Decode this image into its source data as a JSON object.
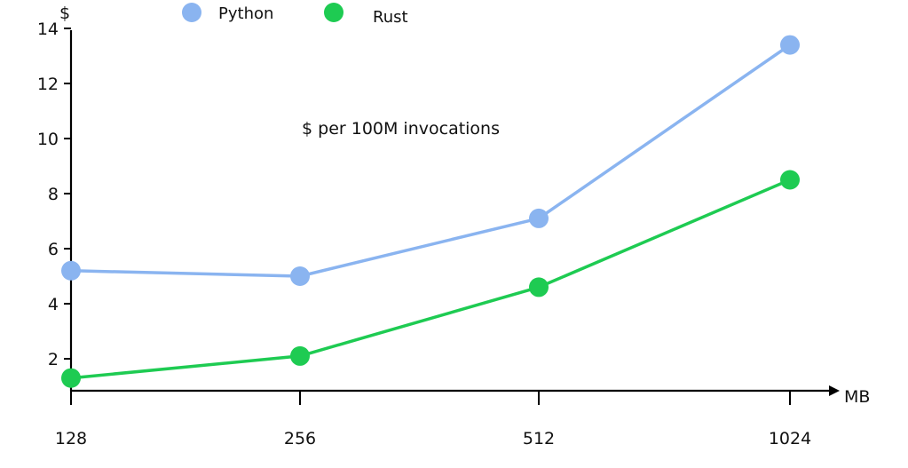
{
  "chart_data": {
    "type": "line",
    "annotation": "$ per 100M invocations",
    "xlabel": "MB",
    "ylabel": "$",
    "categories": [
      "128",
      "256",
      "512",
      "1024"
    ],
    "yticks": [
      2,
      4,
      6,
      8,
      10,
      12,
      14
    ],
    "ylim": [
      0,
      14
    ],
    "grid": false,
    "legend_position": "top-left",
    "series": [
      {
        "name": "Python",
        "color": "#8ab4f0",
        "values": [
          5.2,
          5.0,
          7.1,
          13.4
        ]
      },
      {
        "name": "Rust",
        "color": "#1ecb52",
        "values": [
          1.3,
          2.1,
          4.6,
          8.5
        ]
      }
    ]
  }
}
